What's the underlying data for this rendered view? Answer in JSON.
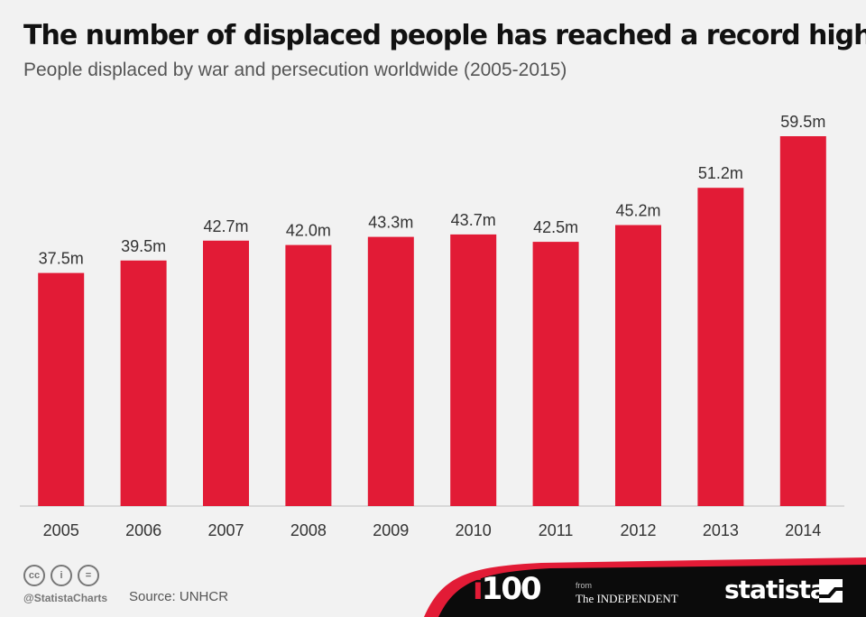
{
  "header": {
    "title": "The number of displaced people has reached a record high",
    "subtitle": "People displaced by war and persecution worldwide (2005-2015)"
  },
  "chart_data": {
    "type": "bar",
    "categories": [
      "2005",
      "2006",
      "2007",
      "2008",
      "2009",
      "2010",
      "2011",
      "2012",
      "2013",
      "2014"
    ],
    "values": [
      37.5,
      39.5,
      42.7,
      42.0,
      43.3,
      43.7,
      42.5,
      45.2,
      51.2,
      59.5
    ],
    "value_labels": [
      "37.5m",
      "39.5m",
      "42.7m",
      "42.0m",
      "43.3m",
      "43.7m",
      "42.5m",
      "45.2m",
      "51.2m",
      "59.5m"
    ],
    "title": "The number of displaced people has reached a record high",
    "subtitle": "People displaced by war and persecution worldwide (2005-2015)",
    "xlabel": "",
    "ylabel": "",
    "ylim": [
      0,
      62
    ],
    "grid": false,
    "bar_color": "#e21b36"
  },
  "footer": {
    "cc_icons": [
      "cc",
      "by",
      "nd"
    ],
    "cc_glyphs": [
      "cc",
      "i",
      "="
    ],
    "handle": "@StatistaCharts",
    "source": "Source: UNHCR",
    "from_text": "from",
    "logo_i100_prefix": "i",
    "logo_i100_suffix": "100",
    "logo_independent": "The INDEPENDENT",
    "logo_statista": "statista",
    "banner_color": "#0b0b0b",
    "accent_color": "#e21b36"
  }
}
